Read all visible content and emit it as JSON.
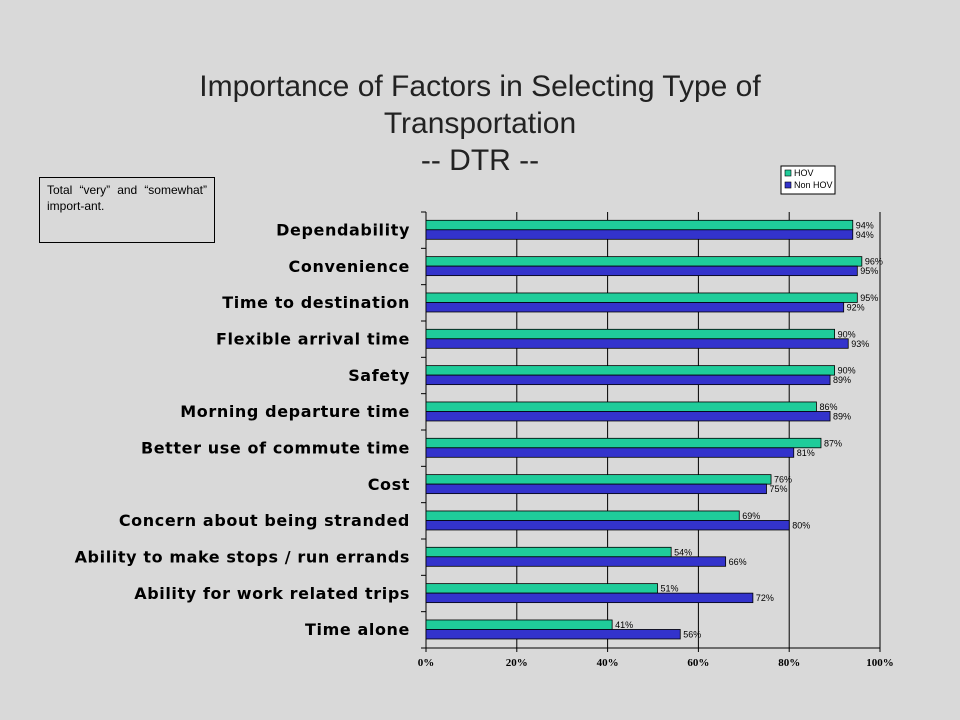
{
  "title_lines": [
    "Importance of Factors in Selecting Type of",
    "Transportation",
    "-- DTR --"
  ],
  "note": "Total “very” and “somewhat” import-ant.",
  "colors": {
    "HOV": "#1fcc9a",
    "Non HOV": "#3333cc",
    "background": "#d9d9d9"
  },
  "chart_data": {
    "type": "bar",
    "orientation": "horizontal",
    "categories": [
      "Dependability",
      "Convenience",
      "Time to destination",
      "Flexible arrival time",
      "Safety",
      "Morning departure time",
      "Better use of commute time",
      "Cost",
      "Concern about being stranded",
      "Ability to make stops / run errands",
      "Ability for work related trips",
      "Time alone"
    ],
    "series": [
      {
        "name": "HOV",
        "values": [
          94,
          96,
          95,
          90,
          90,
          86,
          87,
          76,
          69,
          54,
          51,
          41
        ]
      },
      {
        "name": "Non HOV",
        "values": [
          94,
          95,
          92,
          93,
          89,
          89,
          81,
          75,
          80,
          66,
          72,
          56
        ]
      }
    ],
    "data_labels": {
      "HOV": [
        "94%",
        "96%",
        "95%",
        "90%",
        "90%",
        "86%",
        "87%",
        "76%",
        "69%",
        "54%",
        "51%",
        "41%"
      ],
      "Non HOV": [
        "94%",
        "95%",
        "92%",
        "93%",
        "89%",
        "89%",
        "81%",
        "75%",
        "80%",
        "66%",
        "72%",
        "56%"
      ]
    },
    "x_ticks": [
      "0%",
      "20%",
      "40%",
      "60%",
      "80%",
      "100%"
    ],
    "xlim": [
      0,
      100
    ],
    "grid": true,
    "legend": {
      "position": "top-right",
      "entries": [
        "HOV",
        "Non HOV"
      ]
    }
  }
}
